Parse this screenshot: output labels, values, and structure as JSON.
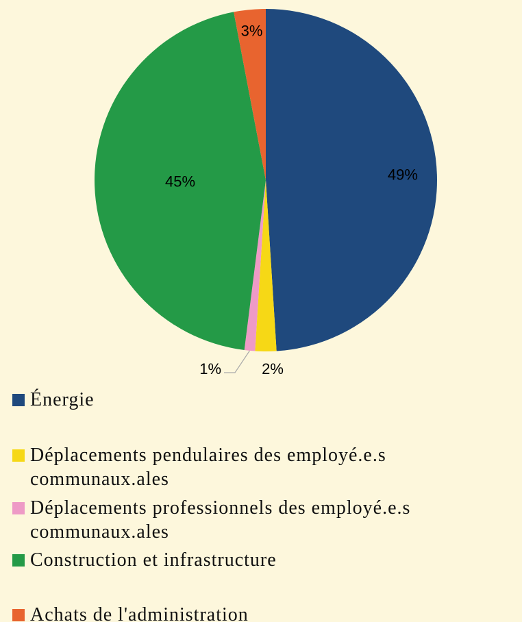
{
  "chart_data": {
    "type": "pie",
    "categories": [
      "Énergie",
      "Déplacements pendulaires des employé.e.s communaux.ales",
      "Déplacements professionnels des employé.e.s communaux.ales",
      "Construction et infrastructure",
      "Achats de l'administration"
    ],
    "values": [
      49,
      2,
      1,
      45,
      3
    ],
    "value_labels": [
      "49%",
      "2%",
      "1%",
      "45%",
      "3%"
    ],
    "colors": [
      "#1f497d",
      "#f6d816",
      "#ee9ac6",
      "#249a47",
      "#e8642f"
    ],
    "legend": "bottom"
  }
}
